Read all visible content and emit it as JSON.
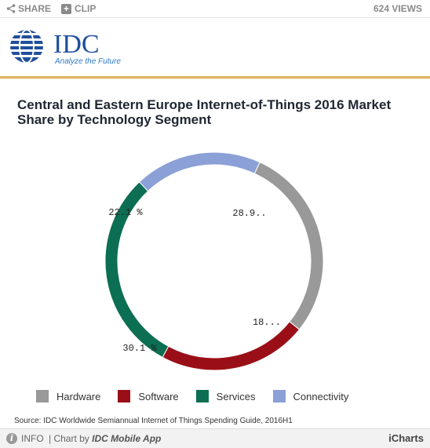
{
  "toolbar": {
    "share_label": "SHARE",
    "clip_label": "CLIP",
    "views_label": "624 VIEWS"
  },
  "logo": {
    "brand": "IDC",
    "tagline": "Analyze the Future",
    "colors": {
      "brand": "#1f4f9c",
      "tagline": "#2c7cc6"
    }
  },
  "chart_data": {
    "type": "pie",
    "donut": true,
    "title": "Central and Eastern Europe Internet-of-Things 2016 Market Share by Technology Segment",
    "categories": [
      "Hardware",
      "Software",
      "Services",
      "Connectivity"
    ],
    "values": [
      28.9,
      22.1,
      30.1,
      18.9
    ],
    "labels": [
      "28.9..",
      "22.1 %",
      "30.1 %",
      "18..."
    ],
    "colors": [
      "#999999",
      "#9a0f17",
      "#0c6e52",
      "#8aa0d6"
    ],
    "legend_position": "bottom"
  },
  "source": "Source: IDC Worldwide Semiannual Internet of Things Spending Guide, 2016H1",
  "footer": {
    "info_label": "INFO",
    "chart_by_prefix": "| Chart by ",
    "chart_by_app": "IDC Mobile App",
    "brand": "iCharts"
  }
}
